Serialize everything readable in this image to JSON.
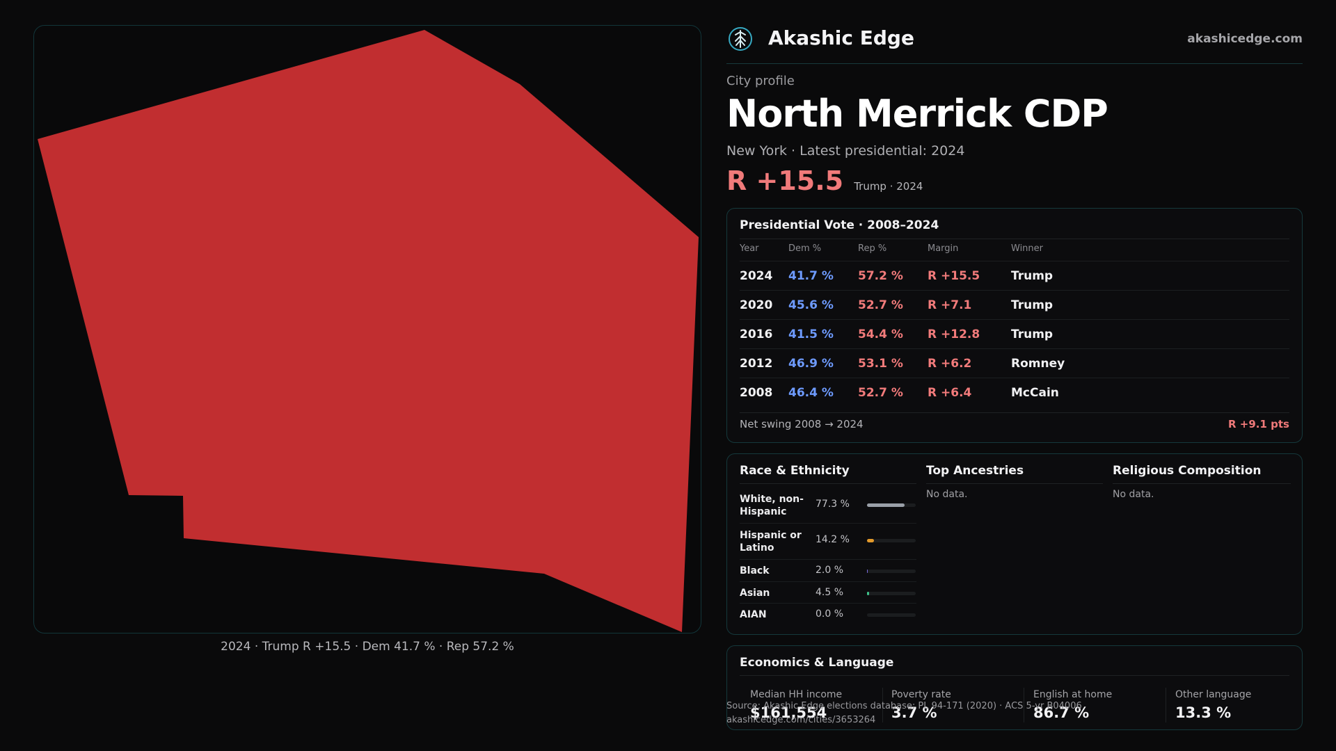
{
  "brand": {
    "name": "Akashic Edge",
    "site": "akashicedge.com",
    "logo_icon": "tree-icon",
    "accent": "#37a9c2"
  },
  "profile": {
    "eyebrow": "City profile",
    "title": "North Merrick CDP",
    "subtitle": "New York  · Latest presidential: 2024",
    "headline_margin": "R +15.5",
    "headline_note": "Trump · 2024"
  },
  "map": {
    "fill": "#c12e30",
    "caption": "2024 · Trump R +15.5 · Dem 41.7 % · Rep 57.2 %"
  },
  "vote": {
    "title": "Presidential Vote · 2008–2024",
    "headers": {
      "year": "Year",
      "dem": "Dem %",
      "rep": "Rep %",
      "margin": "Margin",
      "winner": "Winner"
    },
    "rows": [
      {
        "year": "2024",
        "dem": "41.7 %",
        "rep": "57.2 %",
        "margin": "R +15.5",
        "winner": "Trump"
      },
      {
        "year": "2020",
        "dem": "45.6 %",
        "rep": "52.7 %",
        "margin": "R +7.1",
        "winner": "Trump"
      },
      {
        "year": "2016",
        "dem": "41.5 %",
        "rep": "54.4 %",
        "margin": "R +12.8",
        "winner": "Trump"
      },
      {
        "year": "2012",
        "dem": "46.9 %",
        "rep": "53.1 %",
        "margin": "R +6.2",
        "winner": "Romney"
      },
      {
        "year": "2008",
        "dem": "46.4 %",
        "rep": "52.7 %",
        "margin": "R +6.4",
        "winner": "McCain"
      }
    ],
    "swing_label": "Net swing 2008 → 2024",
    "swing_value": "R +9.1 pts"
  },
  "demographics": {
    "race_title": "Race & Ethnicity",
    "race": [
      {
        "name": "White, non-\nHispanic",
        "pct": "77.3 %",
        "value": 77.3,
        "color": "#9aa0a8"
      },
      {
        "name": "Hispanic or\nLatino",
        "pct": "14.2 %",
        "value": 14.2,
        "color": "#e39a2b"
      },
      {
        "name": "Black",
        "pct": "2.0 %",
        "value": 2.0,
        "color": "#7b6be0"
      },
      {
        "name": "Asian",
        "pct": "4.5 %",
        "value": 4.5,
        "color": "#3ec28a"
      },
      {
        "name": "AIAN",
        "pct": "0.0 %",
        "value": 0.0,
        "color": "#c9a23a"
      }
    ],
    "ancestry_title": "Top Ancestries",
    "ancestry_empty": "No data.",
    "religion_title": "Religious Composition",
    "religion_empty": "No data."
  },
  "economics": {
    "title": "Economics & Language",
    "stats": [
      {
        "label": "Median HH income",
        "value": "$161,554"
      },
      {
        "label": "Poverty rate",
        "value": "3.7 %"
      },
      {
        "label": "English at home",
        "value": "86.7 %"
      },
      {
        "label": "Other language",
        "value": "13.3 %"
      }
    ]
  },
  "source": {
    "line1": "Source: Akashic Edge elections database; PL 94-171 (2020) · ACS 5-yr B04006",
    "line2": "akashicedge.com/cities/3653264"
  }
}
